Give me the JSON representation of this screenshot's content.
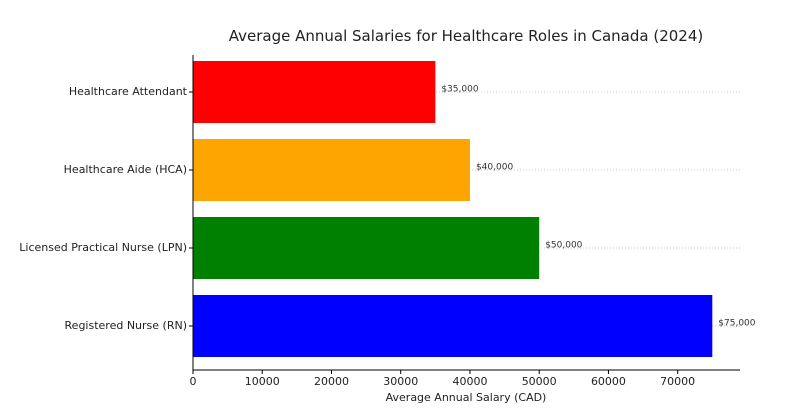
{
  "chart_data": {
    "type": "bar",
    "orientation": "horizontal",
    "title": "Average Annual Salaries for Healthcare Roles in Canada (2024)",
    "xlabel": "Average Annual Salary (CAD)",
    "ylabel": "",
    "categories": [
      "Healthcare Attendant",
      "Healthcare Aide (HCA)",
      "Licensed Practical Nurse (LPN)",
      "Registered Nurse (RN)"
    ],
    "values": [
      35000,
      40000,
      50000,
      75000
    ],
    "data_labels": [
      "$35,000",
      "$40,000",
      "$50,000",
      "$75,000"
    ],
    "colors": [
      "#ff0000",
      "#ffa500",
      "#008000",
      "#0000ff"
    ],
    "xlim": [
      0,
      79000
    ],
    "xticks": [
      0,
      10000,
      20000,
      30000,
      40000,
      50000,
      60000,
      70000
    ],
    "xtick_labels": [
      "0",
      "10000",
      "20000",
      "30000",
      "40000",
      "50000",
      "60000",
      "70000"
    ],
    "grid": "horizontal dotted at bar centers",
    "legend": "none"
  }
}
